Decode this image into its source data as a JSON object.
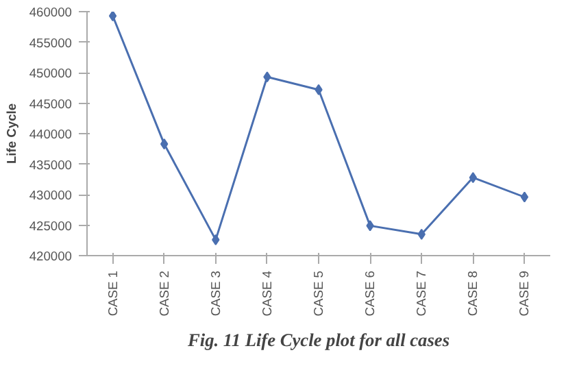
{
  "chart_data": {
    "type": "line",
    "ylabel": "Life Cycle",
    "categories": [
      "CASE 1",
      "CASE 2",
      "CASE 3",
      "CASE 4",
      "CASE 5",
      "CASE 6",
      "CASE 7",
      "CASE 8",
      "CASE 9"
    ],
    "series": [
      {
        "color": "#4a6fb0",
        "values": [
          459300,
          438300,
          422600,
          449300,
          447200,
          424900,
          423500,
          432800,
          429600
        ]
      }
    ],
    "ylim": [
      420000,
      460000
    ],
    "yticks": [
      420000,
      425000,
      430000,
      435000,
      440000,
      445000,
      450000,
      455000,
      460000
    ],
    "marker": "diamond",
    "grid": false,
    "annotations": [
      "Fig. 11 Life Cycle plot for all cases"
    ]
  }
}
